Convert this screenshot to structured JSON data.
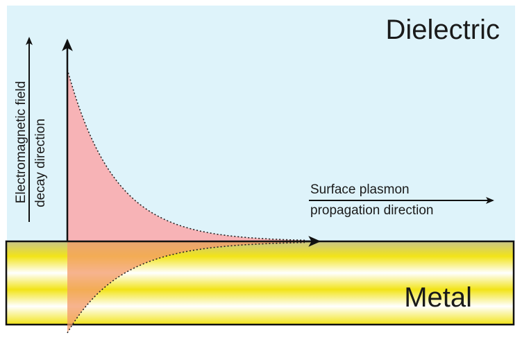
{
  "labels": {
    "dielectric": "Dielectric",
    "metal": "Metal",
    "decay_axis": [
      "Electromagnetic field",
      "decay direction"
    ],
    "propagation_axis": [
      "Surface plasmon",
      "propagation direction"
    ]
  }
}
